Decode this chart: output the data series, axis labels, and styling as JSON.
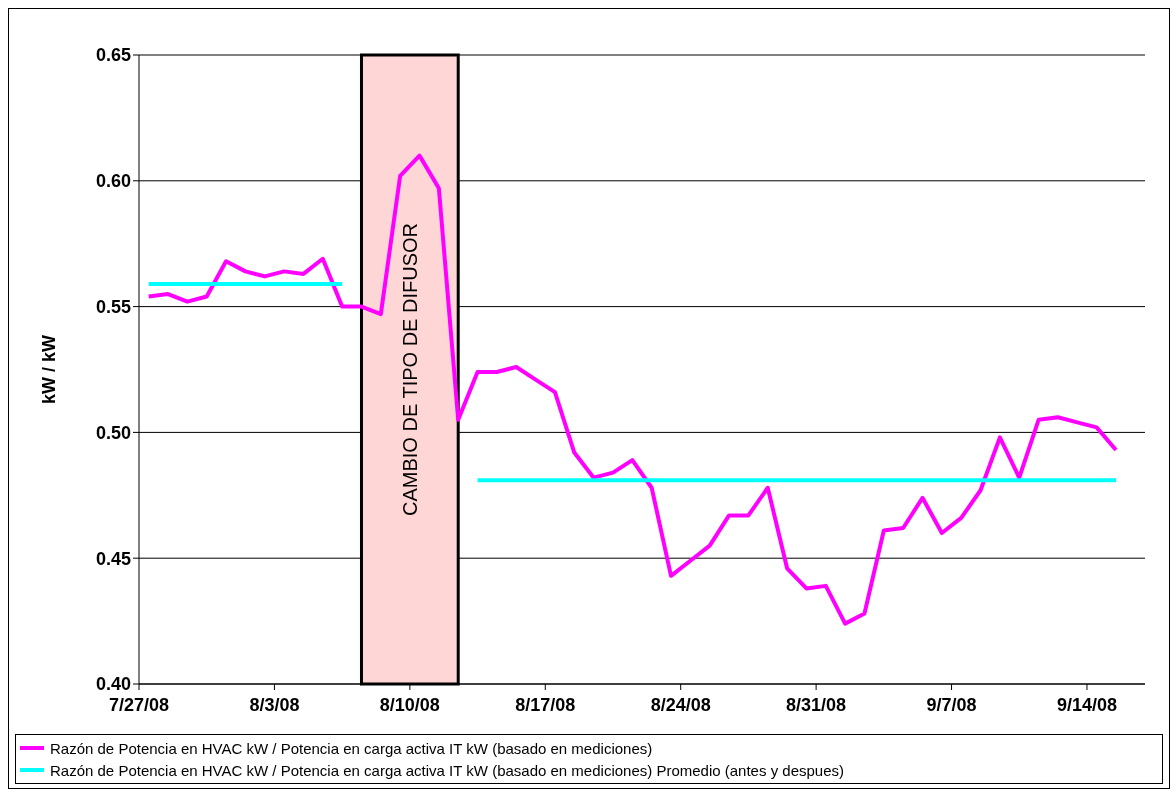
{
  "chart_data": {
    "type": "line",
    "ylabel": "kW / kW",
    "x": [
      "--07-27T12:00",
      "--07-28T12:00",
      "--07-29T12:00",
      "--07-30T12:00",
      "--07-31T12:00",
      "--08-01T12:00",
      "--08-02T12:00",
      "--08-03T12:00",
      "--08-04T12:00",
      "--08-05T12:00",
      "--08-06T12:00",
      "--08-07T12:00",
      "--08-08T12:00",
      "--08-09T12:00",
      "--08-10T12:00",
      "--08-11T12:00",
      "--08-12T12:00",
      "--08-13T12:00",
      "--08-14T12:00",
      "--08-15T12:00",
      "--08-16T12:00",
      "--08-17T12:00",
      "--08-18T12:00",
      "--08-19T12:00",
      "--08-20T12:00",
      "--08-21T12:00",
      "--08-22T12:00",
      "--08-23T12:00",
      "--08-24T12:00",
      "--08-25T12:00",
      "--08-26T12:00",
      "--08-27T12:00",
      "--08-28T12:00",
      "--08-29T12:00",
      "--08-30T12:00",
      "--08-31T12:00",
      "--09-01T12:00",
      "--09-02T12:00",
      "--09-03T12:00",
      "--09-04T12:00",
      "--09-05T12:00",
      "--09-06T12:00",
      "--09-07T12:00",
      "--09-08T12:00",
      "--09-09T12:00",
      "--09-10T12:00",
      "--09-11T12:00",
      "--09-12T12:00",
      "--09-13T12:00",
      "--09-14T12:00",
      "--09-15T12:00"
    ],
    "series": [
      {
        "name": "Razón de Potencia en HVAC kW / Potencia en carga activa IT kW (basado en mediciones)",
        "color": "#ff00ff",
        "values": [
          0.554,
          0.555,
          0.552,
          0.554,
          0.568,
          0.564,
          0.562,
          0.564,
          0.563,
          0.569,
          0.55,
          0.55,
          0.547,
          0.602,
          0.61,
          0.597,
          0.505,
          0.524,
          0.524,
          0.526,
          0.521,
          0.516,
          0.492,
          0.482,
          0.484,
          0.489,
          0.478,
          0.443,
          0.449,
          0.455,
          0.467,
          0.467,
          0.478,
          0.446,
          0.438,
          0.439,
          0.424,
          0.428,
          0.461,
          0.462,
          0.474,
          0.46,
          0.466,
          0.477,
          0.498,
          0.482,
          0.505,
          0.506,
          0.504,
          0.502,
          0.493
        ]
      },
      {
        "name": "Razón de Potencia en HVAC kW / Potencia en carga activa IT kW (basado en mediciones) Promedio (antes y despues)",
        "color": "#00ffff",
        "values": [
          0.559,
          0.559,
          0.559,
          0.559,
          0.559,
          0.559,
          0.559,
          0.559,
          0.559,
          0.559,
          0.559,
          null,
          null,
          null,
          null,
          null,
          null,
          0.481,
          0.481,
          0.481,
          0.481,
          0.481,
          0.481,
          0.481,
          0.481,
          0.481,
          0.481,
          0.481,
          0.481,
          0.481,
          0.481,
          0.481,
          0.481,
          0.481,
          0.481,
          0.481,
          0.481,
          0.481,
          0.481,
          0.481,
          0.481,
          0.481,
          0.481,
          0.481,
          0.481,
          0.481,
          0.481,
          0.481,
          0.481,
          0.481,
          0.481
        ]
      }
    ],
    "xlim": [
      "--07-27",
      "--09-17"
    ],
    "xticks": [
      {
        "value": "--07-27",
        "label": "7/27/08"
      },
      {
        "value": "--08-03",
        "label": "8/3/08"
      },
      {
        "value": "--08-10",
        "label": "8/10/08"
      },
      {
        "value": "--08-17",
        "label": "8/17/08"
      },
      {
        "value": "--08-24",
        "label": "8/24/08"
      },
      {
        "value": "--08-31",
        "label": "8/31/08"
      },
      {
        "value": "--09-07",
        "label": "9/7/08"
      },
      {
        "value": "--09-14",
        "label": "9/14/08"
      }
    ],
    "ylim": [
      0.4,
      0.65
    ],
    "yticks": [
      {
        "value": 0.4,
        "label": "0.40"
      },
      {
        "value": 0.45,
        "label": "0.45"
      },
      {
        "value": 0.5,
        "label": "0.50"
      },
      {
        "value": 0.55,
        "label": "0.55"
      },
      {
        "value": 0.6,
        "label": "0.60"
      },
      {
        "value": 0.65,
        "label": "0.65"
      }
    ],
    "bands": [
      {
        "axis": "x",
        "from": "--08-07T12:00",
        "to": "--08-12T12:00",
        "label": "CAMBIO DE TIPO DE DIFUSOR",
        "color": "#ffd6d6"
      }
    ],
    "grid": "y",
    "legend": "bottom",
    "marker": "none",
    "line_style": "solid"
  }
}
